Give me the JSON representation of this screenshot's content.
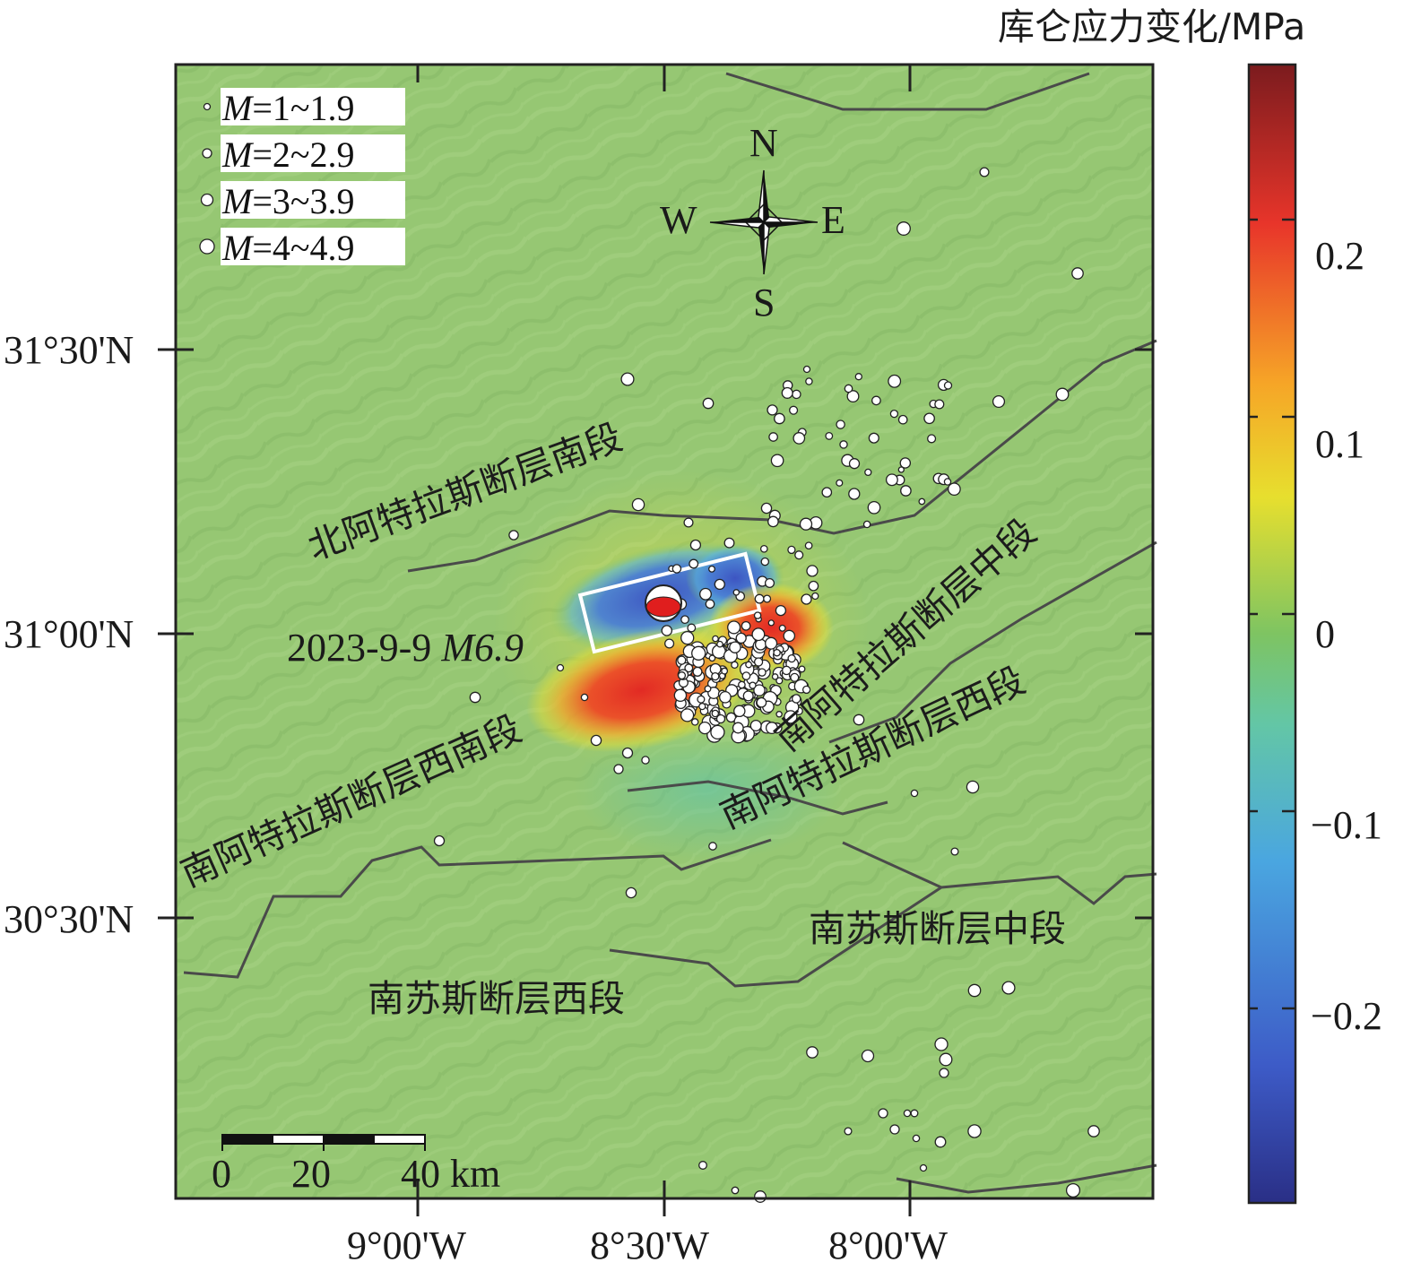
{
  "colorbar": {
    "title": "库仑应力变化/MPa",
    "ticks": [
      "0.2",
      "0.1",
      "0",
      "−0.1",
      "−0.2"
    ],
    "colors": [
      "#2a2f86",
      "#3d5bc7",
      "#4aa6e0",
      "#63c6a6",
      "#7ec462",
      "#e7df2e",
      "#f6a527",
      "#e8352a",
      "#7b1b1e"
    ]
  },
  "axes": {
    "lat_ticks": [
      "31°30'N",
      "31°00'N",
      "30°30'N"
    ],
    "lon_ticks": [
      "9°00'W",
      "8°30'W",
      "8°00'W"
    ]
  },
  "legend": {
    "items": [
      {
        "m": "M",
        "range": "=1~1.9"
      },
      {
        "m": "M",
        "range": "=2~2.9"
      },
      {
        "m": "M",
        "range": "=3~3.9"
      },
      {
        "m": "M",
        "range": "=4~4.9"
      }
    ]
  },
  "compass": {
    "n": "N",
    "s": "S",
    "e": "E",
    "w": "W"
  },
  "event": {
    "date": "2023-9-9 ",
    "mag": "M6.9"
  },
  "scale_bar": {
    "labels": [
      "0",
      "20",
      "40 km"
    ]
  },
  "faults": {
    "f1": "北阿特拉斯断层南段",
    "f2": "南阿特拉斯断层中段",
    "f3": "南阿特拉斯断层西段",
    "f4": "南阿特拉斯断层西南段",
    "f5": "南苏斯断层中段",
    "f6": "南苏斯断层西段"
  },
  "colors": {
    "map_bg": "#96c774",
    "fault_line": "#4a4a4a",
    "rupture_box": "#ffffff",
    "beachball_red": "#e01e1e"
  }
}
